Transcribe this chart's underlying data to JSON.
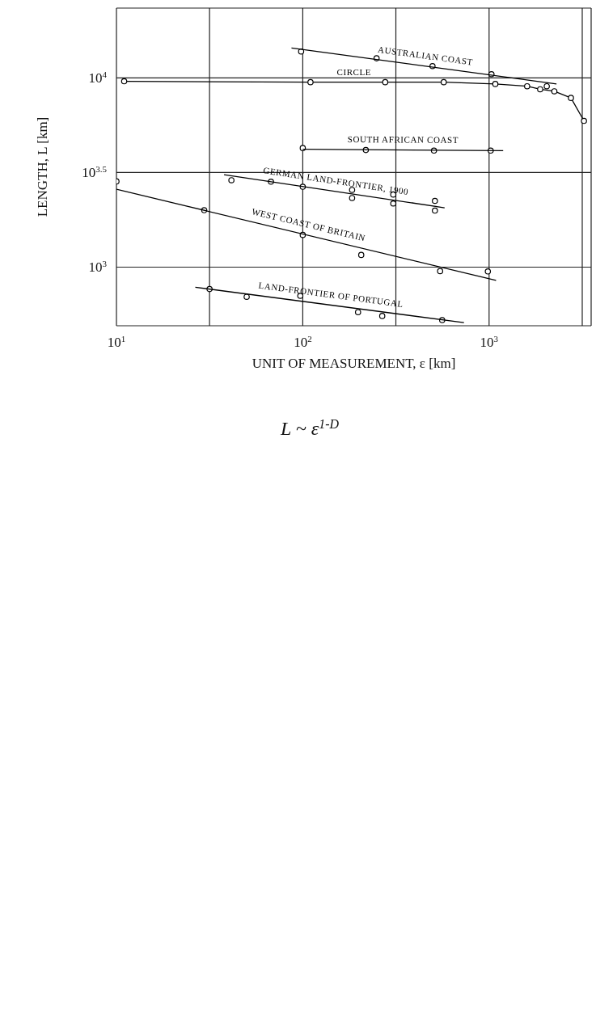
{
  "chart_data": {
    "type": "scatter",
    "xlabel": "UNIT OF MEASUREMENT, ε [km]",
    "ylabel": "LENGTH, L [km]",
    "log": "xy",
    "grid": true,
    "marker": "circle",
    "line_style": "solid",
    "xlim": [
      10,
      3530
    ],
    "ylim": [
      490,
      23400
    ],
    "xticks": [
      {
        "value": 10,
        "label": "10$^{1}$"
      },
      {
        "value": 31.6,
        "label": null
      },
      {
        "value": 100,
        "label": "10$^{2}$"
      },
      {
        "value": 316,
        "label": null
      },
      {
        "value": 1000,
        "label": "10$^{3}$"
      },
      {
        "value": 3162,
        "label": null
      }
    ],
    "yticks": [
      {
        "value": 1000,
        "label": "10$^{3}$"
      },
      {
        "value": 3162,
        "label": "10$^{3.5}$"
      },
      {
        "value": 10000,
        "label": "10$^{4}$"
      }
    ],
    "series": [
      {
        "type": "line",
        "name": "CIRCLE",
        "color": "#000000",
        "x": [
          11,
          110,
          277,
          571,
          1080,
          1600,
          1880,
          2240,
          2750,
          3230
        ],
        "values": [
          9600,
          9500,
          9500,
          9500,
          9290,
          9040,
          8710,
          8500,
          7840,
          5930
        ]
      },
      {
        "color": "#000000",
        "x": [
          98,
          249,
          497,
          1030,
          2040
        ],
        "values": [
          13800,
          12700,
          11550,
          10470,
          9040
        ]
      },
      {
        "type": "line",
        "name": "AUSTRALIAN COAST",
        "marker": "none",
        "color": "#000000",
        "x": [
          87,
          2300
        ],
        "values": [
          14400,
          9300
        ]
      },
      {
        "color": "#000000",
        "x": [
          100,
          218,
          506,
          1020
        ],
        "values": [
          4260,
          4160,
          4130,
          4130
        ]
      },
      {
        "type": "line",
        "name": "SOUTH AFRICAN COAST",
        "marker": "none",
        "color": "#000000",
        "x": [
          100,
          1190
        ],
        "values": [
          4200,
          4130
        ]
      },
      {
        "color": "#000000",
        "x": [
          41.4,
          67.5,
          100,
          184,
          184,
          306,
          306,
          512,
          512
        ],
        "values": [
          2880,
          2830,
          2660,
          2560,
          2320,
          2420,
          2170,
          2240,
          1990
        ]
      },
      {
        "type": "line",
        "name": "GERMAN LAND-FRONTIER, 1900",
        "marker": "none",
        "color": "#000000",
        "x": [
          37.8,
          577
        ],
        "values": [
          3080,
          2060
        ]
      },
      {
        "color": "#000000",
        "x": [
          10,
          29.6,
          100,
          206,
          546,
          985
        ],
        "values": [
          2840,
          2000,
          1480,
          1160,
          953,
          949
        ]
      },
      {
        "type": "line",
        "name": "WEST COAST OF BRITAIN",
        "marker": "none",
        "color": "#000000",
        "x": [
          10,
          1090
        ],
        "values": [
          2580,
          851
        ]
      },
      {
        "color": "#000000",
        "x": [
          31.6,
          50,
          97,
          198,
          267,
          560
        ],
        "values": [
          766,
          697,
          705,
          578,
          552,
          525
        ]
      },
      {
        "type": "line",
        "name": "LAND-FRONTIER OF PORTUGAL",
        "marker": "none",
        "color": "#000000",
        "x": [
          26.5,
          733
        ],
        "values": [
          783,
          509
        ]
      }
    ],
    "annotations": [
      "L ~ ε$^{1-D}$"
    ]
  }
}
